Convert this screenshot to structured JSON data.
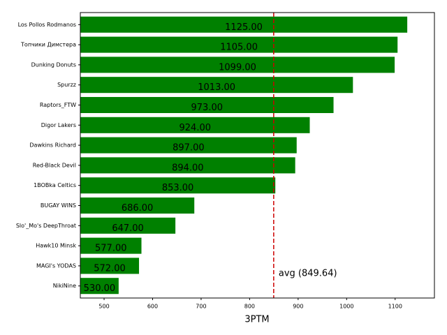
{
  "chart_data": {
    "type": "barh",
    "xlabel": "3PTM",
    "categories": [
      "Los Pollos Rodmanos",
      "Топчики Димстера",
      "Dunking Donuts",
      "Spurzz",
      "Raptors_FTW",
      "Digor Lakers",
      "Dawkins Richard",
      "Red-Black Devil",
      "1BOBka Celtics",
      "BUGAY WINS",
      "Slo'_Mo's DeepThroat",
      "Hawk10 Minsk",
      "MAGI's YODAS",
      "NikiNine"
    ],
    "values": [
      1125,
      1105,
      1099,
      1013,
      973,
      924,
      897,
      894,
      853,
      686,
      647,
      577,
      572,
      530
    ],
    "value_labels": [
      "1125.00",
      "1105.00",
      "1099.00",
      "1013.00",
      "973.00",
      "924.00",
      "897.00",
      "894.00",
      "853.00",
      "686.00",
      "647.00",
      "577.00",
      "572.00",
      "530.00"
    ],
    "color": "#008000",
    "avg": {
      "value": 849.64,
      "label": "avg (849.64)"
    },
    "avg_color": "#cc0000",
    "xlim": [
      451,
      1181
    ],
    "xticks": [
      500,
      600,
      700,
      800,
      900,
      1000,
      1100
    ]
  }
}
